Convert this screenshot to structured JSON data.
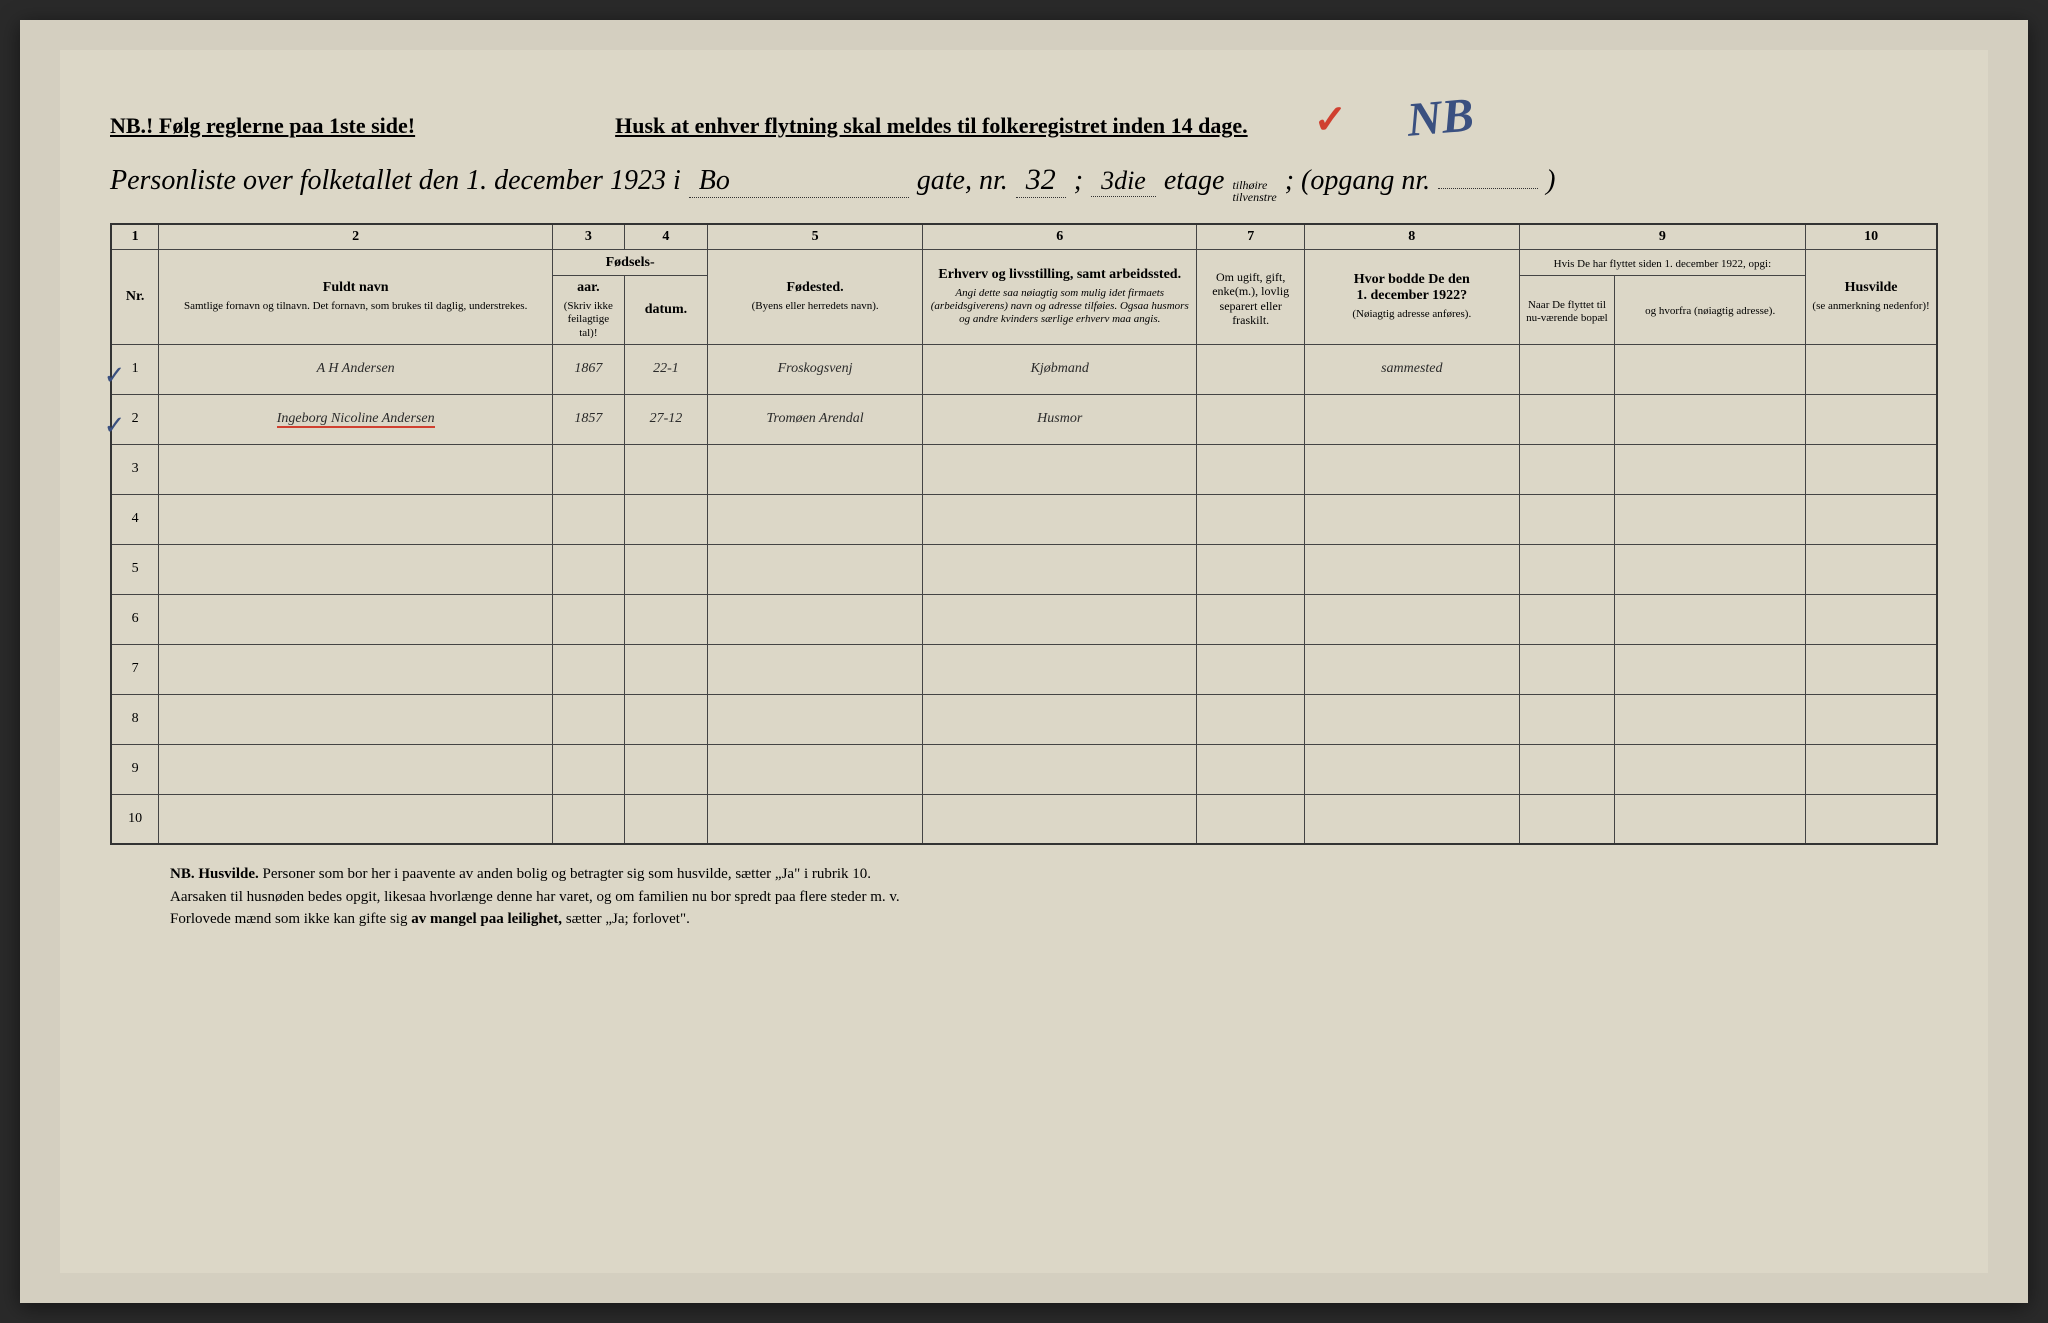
{
  "header": {
    "nb_left": "NB.! Følg reglerne paa 1ste side!",
    "reminder": "Husk at enhver flytning skal meldes til folkeregistret inden 14 dage.",
    "annotation_blue": "NB"
  },
  "title": {
    "prefix": "Personliste over folketallet den 1. december 1923 i",
    "street_hand": "Bo",
    "street_suffix": "gate, nr.",
    "house_nr": "32",
    "floor_sep": ";",
    "floor_hand": "3die",
    "floor_suffix": "etage",
    "side_top": "tilhøire",
    "side_bot": "tilvenstre",
    "entrance": "; (opgang nr.",
    "entrance_val": "",
    "entrance_end": ")"
  },
  "columns": {
    "nums": [
      "1",
      "2",
      "3",
      "4",
      "5",
      "6",
      "7",
      "8",
      "9",
      "10"
    ],
    "nr": "Nr.",
    "name": {
      "title": "Fuldt navn",
      "sub": "Samtlige fornavn og tilnavn. Det fornavn, som brukes til daglig, understrekes."
    },
    "birth": {
      "title": "Fødsels-",
      "year": "aar.",
      "date": "datum.",
      "note": "(Skriv ikke feilagtige tal)!"
    },
    "birthplace": {
      "title": "Fødested.",
      "sub": "(Byens eller herredets navn)."
    },
    "occupation": {
      "title": "Erhverv og livsstilling, samt arbeidssted.",
      "sub": "Angi dette saa nøiagtig som mulig idet firmaets (arbeidsgiverens) navn og adresse tilføies. Ogsaa husmors og andre kvinders særlige erhverv maa angis."
    },
    "marital": {
      "title": "Om ugift, gift, enke(m.), lovlig separert eller fraskilt."
    },
    "prev_addr": {
      "title": "Hvor bodde De den",
      "date": "1. december 1922?",
      "sub": "(Nøiagtig adresse anføres)."
    },
    "moved": {
      "title": "Hvis De har flyttet siden 1. december 1922, opgi:",
      "when": "Naar De flyttet til nu-værende bopæl",
      "from": "og hvorfra (nøiagtig adresse)."
    },
    "homeless": {
      "title": "Husvilde",
      "sub": "(se anmerkning nedenfor)!"
    }
  },
  "rows": [
    {
      "nr": "1",
      "name": "A H Andersen",
      "year": "1867",
      "date": "22-1",
      "birthplace": "Froskogsvenj",
      "occupation": "Kjøbmand",
      "marital": "",
      "prev": "sammested",
      "check": true
    },
    {
      "nr": "2",
      "name": "Ingeborg Nicoline Andersen",
      "year": "1857",
      "date": "27-12",
      "birthplace": "Tromøen Arendal",
      "occupation": "Husmor",
      "marital": "",
      "prev": "",
      "check": true,
      "red": true
    },
    {
      "nr": "3"
    },
    {
      "nr": "4"
    },
    {
      "nr": "5"
    },
    {
      "nr": "6"
    },
    {
      "nr": "7"
    },
    {
      "nr": "8"
    },
    {
      "nr": "9"
    },
    {
      "nr": "10"
    }
  ],
  "footnote": {
    "lead": "NB.  Husvilde.",
    "l1": "Personer som bor her i paavente av anden bolig og betragter sig som husvilde, sætter „Ja\" i rubrik 10.",
    "l2": "Aarsaken til husnøden bedes opgit, likesaa hvorlænge denne har varet, og om familien nu bor spredt paa flere steder m. v.",
    "l3a": "Forlovede mænd som ikke kan gifte sig ",
    "l3b": "av mangel paa leilighet,",
    "l3c": " sætter „Ja; forlovet\"."
  }
}
